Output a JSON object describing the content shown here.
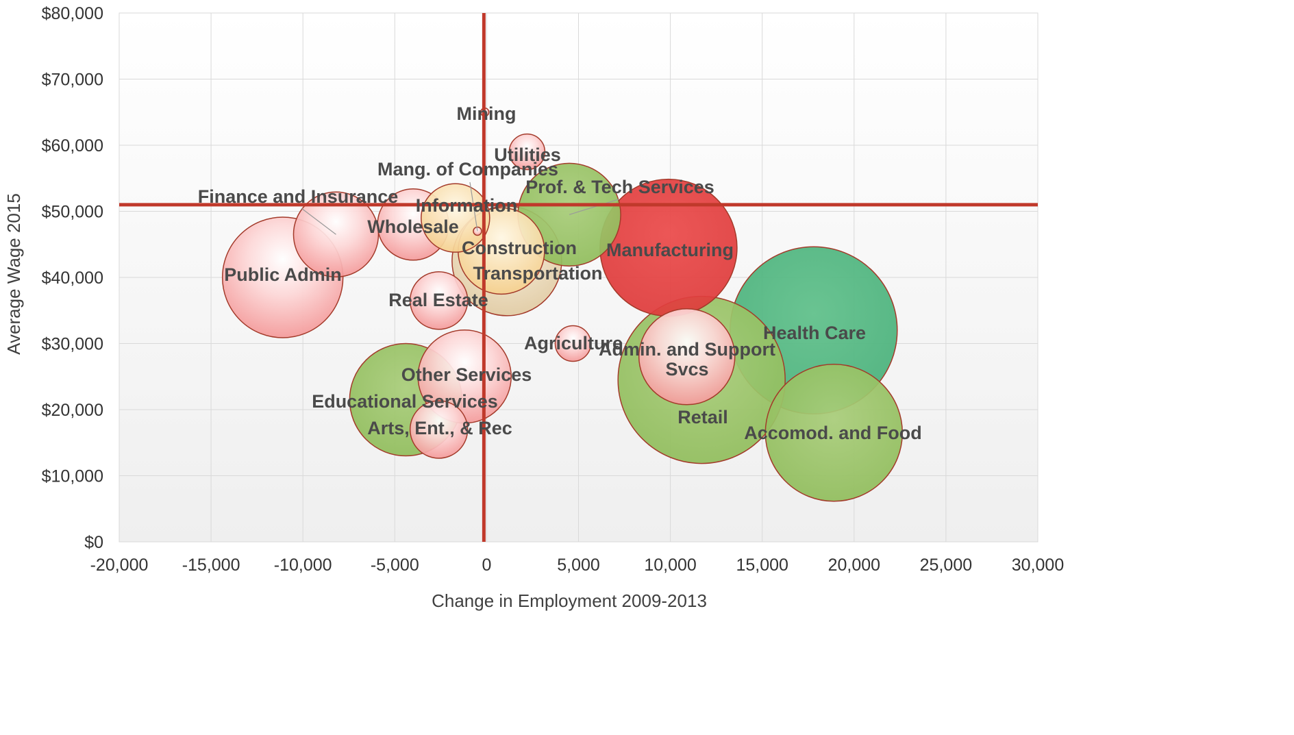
{
  "chart_data": {
    "type": "bubble",
    "title": "",
    "xlabel": "Change in Employment 2009-2013",
    "ylabel": "Average Wage 2015",
    "xlim": [
      -20000,
      30000
    ],
    "ylim": [
      0,
      80000
    ],
    "x_ticks": [
      "-20,000",
      "-15,000",
      "-10,000",
      "-5,000",
      "0",
      "5,000",
      "10,000",
      "15,000",
      "20,000",
      "25,000",
      "30,000"
    ],
    "y_ticks": [
      "$0",
      "$10,000",
      "$20,000",
      "$30,000",
      "$40,000",
      "$50,000",
      "$60,000",
      "$70,000",
      "$80,000"
    ],
    "grid": true,
    "reference_lines": {
      "x": -150,
      "y": 51000,
      "color": "#c0392b"
    },
    "points": [
      {
        "label": "Public Admin",
        "x": -11100,
        "y": 40000,
        "size": 88,
        "color": "pink"
      },
      {
        "label": "Finance and Insurance",
        "x": -8200,
        "y": 46500,
        "size": 62,
        "color": "pink"
      },
      {
        "label": "Wholesale",
        "x": -4000,
        "y": 48000,
        "size": 52,
        "color": "pink"
      },
      {
        "label": "Information",
        "x": -1700,
        "y": 49000,
        "size": 50,
        "color": "tan"
      },
      {
        "label": "Mang. of Companies",
        "x": -500,
        "y": 47000,
        "size": 6,
        "color": "pink"
      },
      {
        "label": "Mining",
        "x": -100,
        "y": 65000,
        "size": 6,
        "color": "pink"
      },
      {
        "label": "Utilities",
        "x": 2200,
        "y": 59000,
        "size": 26,
        "color": "pink"
      },
      {
        "label": "Prof. & Tech Services",
        "x": 4500,
        "y": 49500,
        "size": 75,
        "color": "green"
      },
      {
        "label": "Construction",
        "x": 800,
        "y": 44000,
        "size": 63,
        "color": "tan"
      },
      {
        "label": "Transportation",
        "x": 1100,
        "y": 42500,
        "size": 80,
        "color": "beige"
      },
      {
        "label": "Manufacturing",
        "x": 9900,
        "y": 44500,
        "size": 100,
        "color": "red"
      },
      {
        "label": "Real Estate",
        "x": -2600,
        "y": 36500,
        "size": 42,
        "color": "pink"
      },
      {
        "label": "Agriculture",
        "x": 4700,
        "y": 30000,
        "size": 26,
        "color": "pink"
      },
      {
        "label": "Health Care",
        "x": 17800,
        "y": 32000,
        "size": 122,
        "color": "teal"
      },
      {
        "label": "Retail",
        "x": 11700,
        "y": 24500,
        "size": 122,
        "color": "green"
      },
      {
        "label": "Admin. and Support Svcs",
        "x": 10900,
        "y": 28000,
        "size": 70,
        "color": "pink"
      },
      {
        "label": "Accomod. and Food",
        "x": 18900,
        "y": 16500,
        "size": 100,
        "color": "green"
      },
      {
        "label": "Other Services",
        "x": -1200,
        "y": 25000,
        "size": 68,
        "color": "pink"
      },
      {
        "label": "Educational Services",
        "x": -4400,
        "y": 21500,
        "size": 82,
        "color": "green"
      },
      {
        "label": "Arts, Ent., & Rec",
        "x": -2600,
        "y": 17000,
        "size": 42,
        "color": "pink"
      }
    ],
    "labels_text": {
      "admin_line1": "Admin. and Support",
      "admin_line2": "Svcs"
    }
  },
  "colors": {
    "axis_line": "#c0392b",
    "grid": "#d9d9d9",
    "bubble_border": "#a33a2a"
  }
}
